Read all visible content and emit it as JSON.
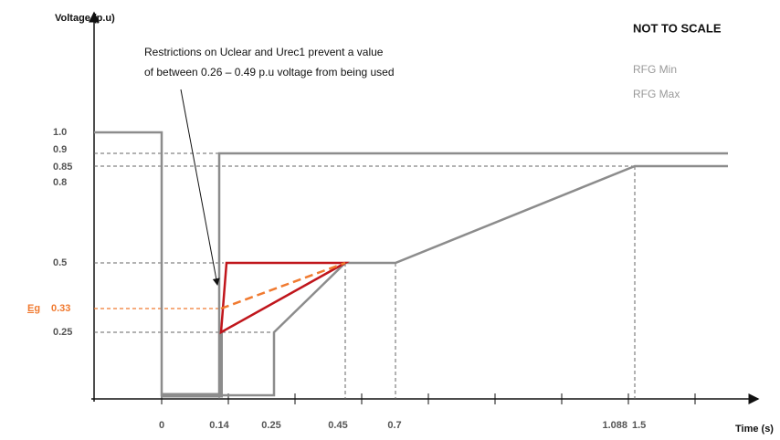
{
  "y_axis": {
    "title": "Voltage (p.u)",
    "labels": [
      "1.0",
      "0.9",
      "0.85",
      "0.8",
      "0.5",
      "0.25"
    ],
    "example": {
      "prefix": "Eg",
      "value": "0.33"
    }
  },
  "x_axis": {
    "title": "Time (s)",
    "labels": [
      "0",
      "0.14",
      "0.25",
      "0.45",
      "0.7",
      "1.088",
      "1.5"
    ]
  },
  "annotation": [
    "Restrictions on Uclear and Urec1 prevent a value",
    "of between 0.26 – 0.49 p.u voltage from being used"
  ],
  "note": "NOT TO SCALE",
  "legend": [
    "RFG Min",
    "RFG Max"
  ]
}
